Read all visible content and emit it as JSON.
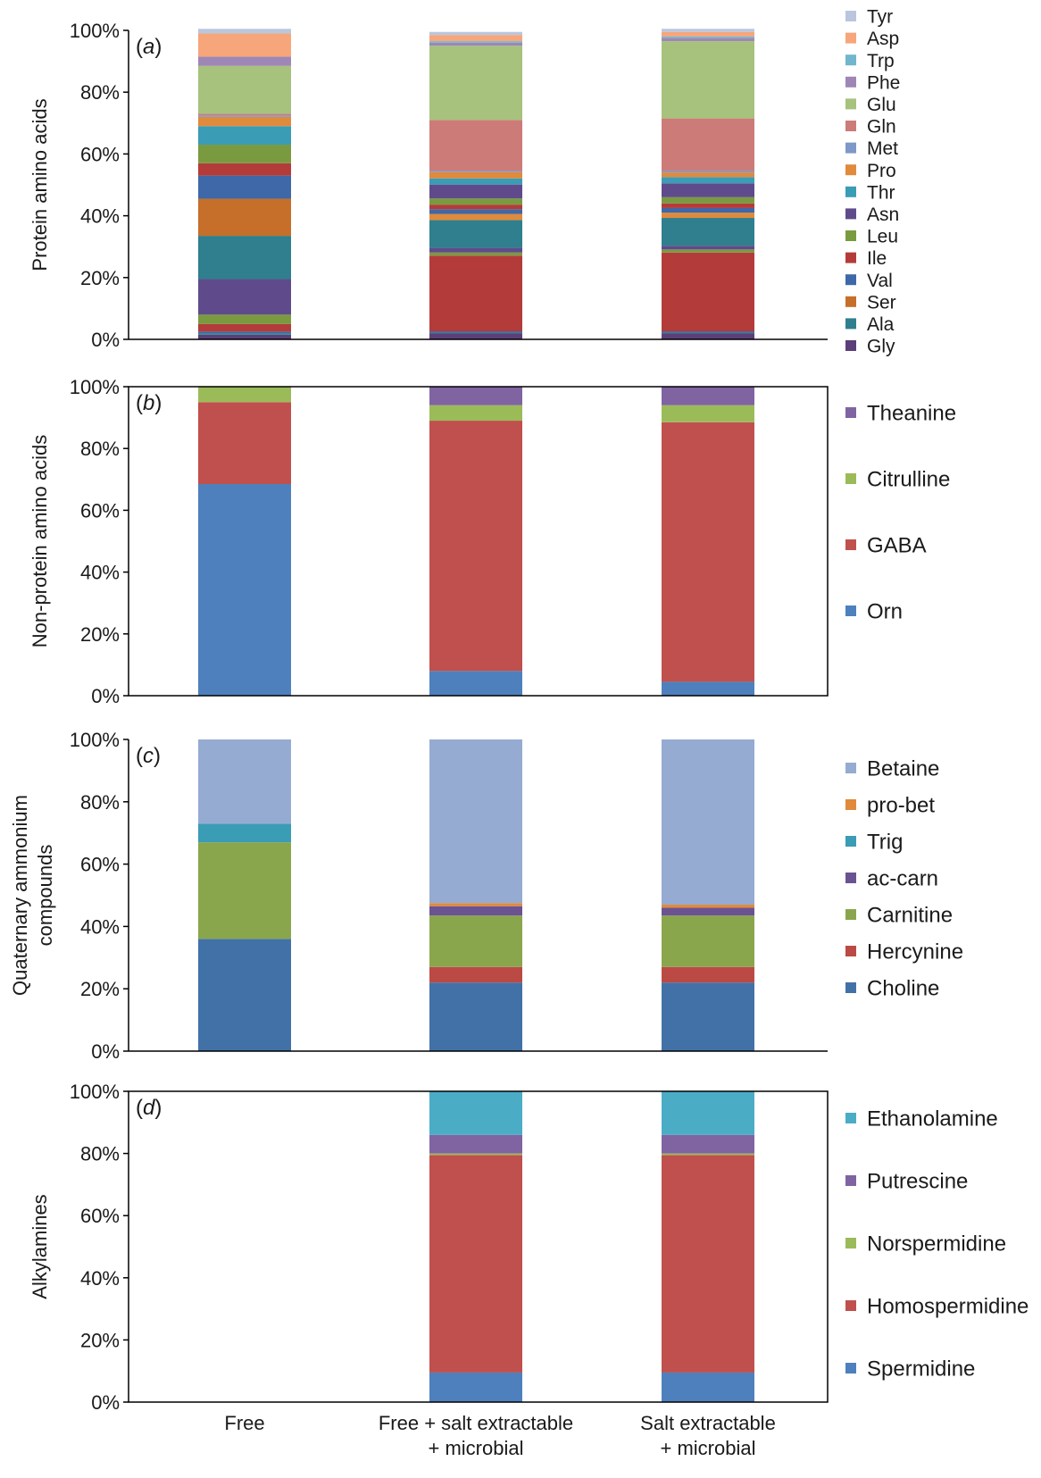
{
  "chart_data": [
    {
      "type": "bar",
      "stacked": true,
      "panel_tag": "(a)",
      "ylabel": "Protein amino acids",
      "ylim": [
        0,
        100
      ],
      "yticks": [
        "0%",
        "20%",
        "40%",
        "60%",
        "80%",
        "100%"
      ],
      "categories": [
        "Free",
        "Free + salt extractable + microbial",
        "Salt extractable + microbial"
      ],
      "series": [
        {
          "name": "Gly",
          "color": "#5b3f78",
          "values": [
            1.5,
            2.0,
            2.0
          ]
        },
        {
          "name": "Ala",
          "color": "#2f7f8e",
          "values": [
            0.5,
            0.3,
            0.3
          ]
        },
        {
          "name": "Ser",
          "color": "#c56f2a",
          "values": [
            0.0,
            0.0,
            0.0
          ]
        },
        {
          "name": "Val",
          "color": "#3f68a8",
          "values": [
            0.5,
            0.3,
            0.3
          ]
        },
        {
          "name": "Ile",
          "color": "#b33c3a",
          "values": [
            2.5,
            24.5,
            25.5
          ]
        },
        {
          "name": "Leu",
          "color": "#7a9a3f",
          "values": [
            3.0,
            1.0,
            1.0
          ]
        },
        {
          "name": "Asn",
          "color": "#5f4b8b",
          "values": [
            11.5,
            1.5,
            1.2
          ]
        },
        {
          "name": "Ala",
          "color": "#2f7f8e",
          "values": [
            14.0,
            9.0,
            9.0
          ]
        },
        {
          "name": "Ser",
          "color": "#c56f2a",
          "values": [
            12.0,
            0.0,
            0.0
          ]
        },
        {
          "name": "Val",
          "color": "#3f68a8",
          "values": [
            7.5,
            0.0,
            0.0
          ]
        },
        {
          "name": "Ile",
          "color": "#b33c3a",
          "values": [
            4.0,
            0.0,
            0.0
          ]
        },
        {
          "name": "Pro",
          "color": "#e08a3c",
          "values": [
            0.0,
            2.0,
            1.7
          ]
        },
        {
          "name": "Val",
          "color": "#3f68a8",
          "values": [
            0.0,
            1.5,
            1.5
          ]
        },
        {
          "name": "Ile",
          "color": "#b33c3a",
          "values": [
            0.0,
            1.5,
            1.5
          ]
        },
        {
          "name": "Leu",
          "color": "#7a9a3f",
          "values": [
            6.0,
            2.0,
            2.0
          ]
        },
        {
          "name": "Asn",
          "color": "#5f4b8b",
          "values": [
            0.0,
            4.5,
            4.5
          ]
        },
        {
          "name": "Thr",
          "color": "#3a9cb5",
          "values": [
            6.0,
            2.0,
            2.0
          ]
        },
        {
          "name": "Pro",
          "color": "#e08a3c",
          "values": [
            3.0,
            2.0,
            1.5
          ]
        },
        {
          "name": "Met",
          "color": "#7e98c8",
          "values": [
            0.5,
            0.4,
            0.5
          ]
        },
        {
          "name": "Gln",
          "color": "#cc7b78",
          "values": [
            0.5,
            16.5,
            17.0
          ]
        },
        {
          "name": "Glu",
          "color": "#a6c27c",
          "values": [
            15.5,
            24.0,
            25.0
          ]
        },
        {
          "name": "Phe",
          "color": "#9f87b5",
          "values": [
            3.0,
            1.0,
            1.0
          ]
        },
        {
          "name": "Trp",
          "color": "#70b6cc",
          "values": [
            0.0,
            0.5,
            0.5
          ]
        },
        {
          "name": "Asp",
          "color": "#f6a67a",
          "values": [
            7.5,
            2.0,
            1.5
          ]
        },
        {
          "name": "Tyr",
          "color": "#b9c6de",
          "values": [
            1.5,
            1.0,
            1.0
          ]
        }
      ],
      "legend": [
        {
          "name": "Tyr",
          "color": "#b9c6de"
        },
        {
          "name": "Asp",
          "color": "#f6a67a"
        },
        {
          "name": "Trp",
          "color": "#70b6cc"
        },
        {
          "name": "Phe",
          "color": "#9f87b5"
        },
        {
          "name": "Glu",
          "color": "#a6c27c"
        },
        {
          "name": "Gln",
          "color": "#cc7b78"
        },
        {
          "name": "Met",
          "color": "#7e98c8"
        },
        {
          "name": "Pro",
          "color": "#e08a3c"
        },
        {
          "name": "Thr",
          "color": "#3a9cb5"
        },
        {
          "name": "Asn",
          "color": "#5f4b8b"
        },
        {
          "name": "Leu",
          "color": "#7a9a3f"
        },
        {
          "name": "Ile",
          "color": "#b33c3a"
        },
        {
          "name": "Val",
          "color": "#3f68a8"
        },
        {
          "name": "Ser",
          "color": "#c56f2a"
        },
        {
          "name": "Ala",
          "color": "#2f7f8e"
        },
        {
          "name": "Gly",
          "color": "#5b3f78"
        }
      ],
      "legend_placement": "right"
    },
    {
      "type": "bar",
      "stacked": true,
      "panel_tag": "(b)",
      "ylabel": "Non-protein amino acids",
      "ylim": [
        0,
        100
      ],
      "yticks": [
        "0%",
        "20%",
        "40%",
        "60%",
        "80%",
        "100%"
      ],
      "categories": [
        "Free",
        "Free + salt extractable + microbial",
        "Salt extractable + microbial"
      ],
      "series": [
        {
          "name": "Orn",
          "color": "#4e80bd",
          "values": [
            68.5,
            8.0,
            4.5
          ]
        },
        {
          "name": "GABA",
          "color": "#c0504d",
          "values": [
            26.5,
            81.0,
            84.0
          ]
        },
        {
          "name": "Citrulline",
          "color": "#9bbb59",
          "values": [
            5.0,
            5.0,
            5.5
          ]
        },
        {
          "name": "Theanine",
          "color": "#8064a2",
          "values": [
            0.0,
            6.0,
            6.0
          ]
        }
      ],
      "legend": [
        {
          "name": "Theanine",
          "color": "#8064a2"
        },
        {
          "name": "Citrulline",
          "color": "#9bbb59"
        },
        {
          "name": "GABA",
          "color": "#c0504d"
        },
        {
          "name": "Orn",
          "color": "#4e80bd"
        }
      ],
      "legend_placement": "right"
    },
    {
      "type": "bar",
      "stacked": true,
      "panel_tag": "(c)",
      "ylabel": "Quaternary ammonium compounds",
      "ylim": [
        0,
        100
      ],
      "yticks": [
        "0%",
        "20%",
        "40%",
        "60%",
        "80%",
        "100%"
      ],
      "categories": [
        "Free",
        "Free + salt extractable + microbial",
        "Salt extractable + microbial"
      ],
      "series": [
        {
          "name": "Choline",
          "color": "#4271a8",
          "values": [
            36.0,
            22.0,
            22.0
          ]
        },
        {
          "name": "Hercynine",
          "color": "#bb4a45",
          "values": [
            0.0,
            5.0,
            5.0
          ]
        },
        {
          "name": "Carnitine",
          "color": "#8aa64d",
          "values": [
            31.0,
            16.5,
            16.5
          ]
        },
        {
          "name": "ac-carn",
          "color": "#6b5391",
          "values": [
            0.0,
            3.0,
            2.5
          ]
        },
        {
          "name": "Trig",
          "color": "#3a9cb5",
          "values": [
            6.0,
            0.0,
            0.0
          ]
        },
        {
          "name": "pro-bet",
          "color": "#e08a3c",
          "values": [
            0.0,
            1.0,
            1.0
          ]
        },
        {
          "name": "Betaine",
          "color": "#95abd2",
          "values": [
            27.0,
            52.5,
            53.0
          ]
        }
      ],
      "legend": [
        {
          "name": "Betaine",
          "color": "#95abd2"
        },
        {
          "name": "pro-bet",
          "color": "#e08a3c"
        },
        {
          "name": "Trig",
          "color": "#3a9cb5"
        },
        {
          "name": "ac-carn",
          "color": "#6b5391"
        },
        {
          "name": "Carnitine",
          "color": "#8aa64d"
        },
        {
          "name": "Hercynine",
          "color": "#bb4a45"
        },
        {
          "name": "Choline",
          "color": "#4271a8"
        }
      ],
      "legend_placement": "right"
    },
    {
      "type": "bar",
      "stacked": true,
      "panel_tag": "(d)",
      "ylabel": "Alkylamines",
      "ylim": [
        0,
        100
      ],
      "yticks": [
        "0%",
        "20%",
        "40%",
        "60%",
        "80%",
        "100%"
      ],
      "categories": [
        "Free",
        "Free + salt extractable + microbial",
        "Salt extractable + microbial"
      ],
      "category_labels": [
        [
          "Free"
        ],
        [
          "Free + salt extractable",
          "+ microbial"
        ],
        [
          "Salt extractable",
          "+ microbial"
        ]
      ],
      "series": [
        {
          "name": "Spermidine",
          "color": "#4e80bd",
          "values": [
            0,
            9.5,
            9.5
          ]
        },
        {
          "name": "Homospermidine",
          "color": "#c0504d",
          "values": [
            0,
            70.0,
            70.0
          ]
        },
        {
          "name": "Norspermidine",
          "color": "#9bbb59",
          "values": [
            0,
            0.5,
            0.5
          ]
        },
        {
          "name": "Putrescine",
          "color": "#8064a2",
          "values": [
            0,
            6.0,
            6.0
          ]
        },
        {
          "name": "Ethanolamine",
          "color": "#4bacc6",
          "values": [
            0,
            14.0,
            14.0
          ]
        }
      ],
      "legend": [
        {
          "name": "Ethanolamine",
          "color": "#4bacc6"
        },
        {
          "name": "Putrescine",
          "color": "#8064a2"
        },
        {
          "name": "Norspermidine",
          "color": "#9bbb59"
        },
        {
          "name": "Homospermidine",
          "color": "#c0504d"
        },
        {
          "name": "Spermidine",
          "color": "#4e80bd"
        }
      ],
      "legend_placement": "right"
    }
  ]
}
